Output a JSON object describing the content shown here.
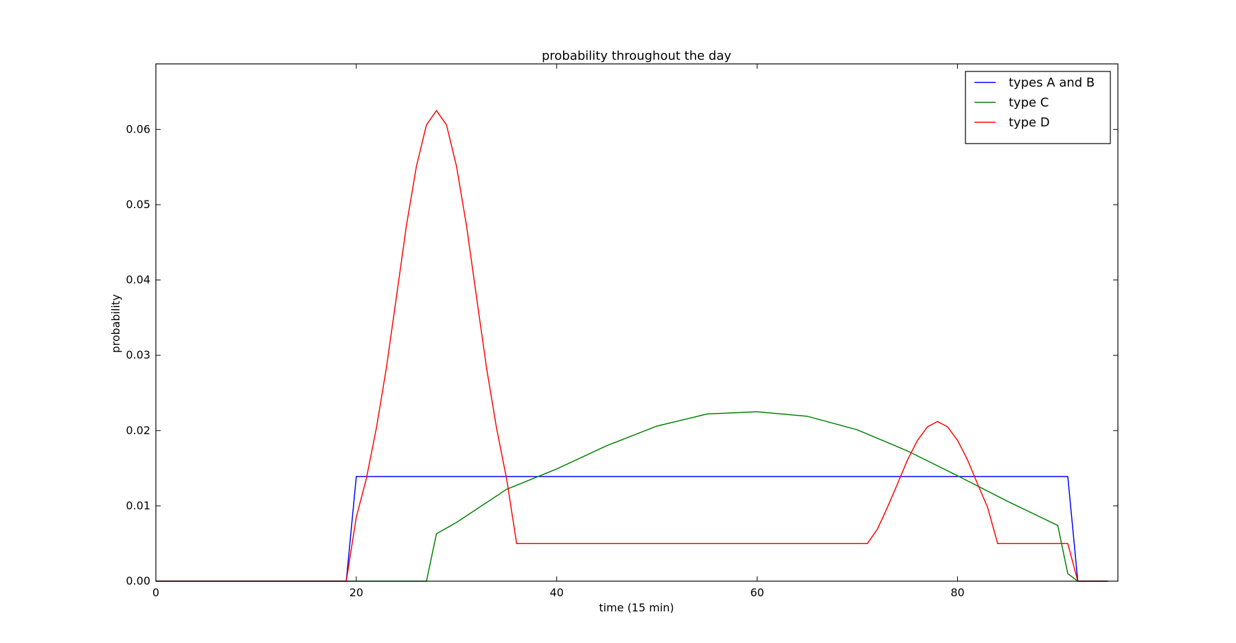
{
  "chart_data": {
    "type": "line",
    "title": "probability throughout the day",
    "xlabel": "time (15 min)",
    "ylabel": "probability",
    "xlim": [
      0,
      96
    ],
    "ylim": [
      0,
      0.0687
    ],
    "xticks": [
      0,
      20,
      40,
      60,
      80
    ],
    "yticks": [
      0.0,
      0.01,
      0.02,
      0.03,
      0.04,
      0.05,
      0.06
    ],
    "xtick_labels": [
      "0",
      "20",
      "40",
      "60",
      "80"
    ],
    "ytick_labels": [
      "0.00",
      "0.01",
      "0.02",
      "0.03",
      "0.04",
      "0.05",
      "0.06"
    ],
    "grid": false,
    "legend": "top-right",
    "series": [
      {
        "name": "types A and B",
        "color": "#0000ff",
        "x": [
          0,
          19,
          20,
          91,
          92,
          95
        ],
        "y": [
          0,
          0,
          0.0139,
          0.0139,
          0,
          0
        ]
      },
      {
        "name": "type C",
        "color": "#008000",
        "x": [
          0,
          27,
          28,
          30,
          35,
          40,
          45,
          50,
          55,
          60,
          65,
          70,
          75,
          80,
          85,
          90,
          91,
          92,
          95
        ],
        "y": [
          0,
          0,
          0.0063,
          0.0078,
          0.0122,
          0.0149,
          0.018,
          0.0206,
          0.0222,
          0.0225,
          0.0219,
          0.0201,
          0.0173,
          0.014,
          0.0106,
          0.0074,
          0.001,
          0,
          0
        ]
      },
      {
        "name": "type D",
        "color": "#ff0000",
        "x": [
          0,
          19,
          20,
          21,
          22,
          23,
          24,
          25,
          26,
          27,
          28,
          29,
          30,
          31,
          32,
          33,
          34,
          35,
          36,
          71,
          72,
          73,
          74,
          75,
          76,
          77,
          78,
          79,
          80,
          81,
          82,
          83,
          84,
          91,
          92,
          95
        ],
        "y": [
          0,
          0,
          0.0085,
          0.0136,
          0.0203,
          0.0283,
          0.0377,
          0.0472,
          0.0551,
          0.0606,
          0.0625,
          0.0606,
          0.0551,
          0.0472,
          0.0377,
          0.0283,
          0.0203,
          0.0136,
          0.005,
          0.005,
          0.0069,
          0.0098,
          0.0129,
          0.0161,
          0.0187,
          0.0205,
          0.0212,
          0.0205,
          0.0187,
          0.0161,
          0.0129,
          0.0098,
          0.005,
          0.005,
          0,
          0
        ]
      }
    ]
  }
}
